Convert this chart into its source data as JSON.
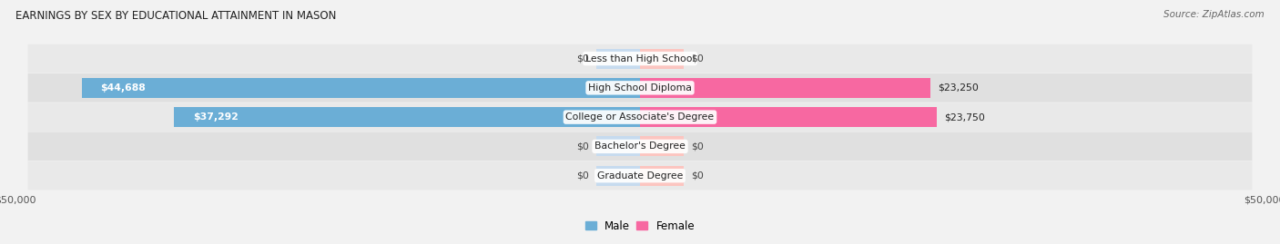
{
  "title": "EARNINGS BY SEX BY EDUCATIONAL ATTAINMENT IN MASON",
  "source": "Source: ZipAtlas.com",
  "categories": [
    "Less than High School",
    "High School Diploma",
    "College or Associate's Degree",
    "Bachelor's Degree",
    "Graduate Degree"
  ],
  "male_values": [
    0,
    44688,
    37292,
    0,
    0
  ],
  "female_values": [
    0,
    23250,
    23750,
    0,
    0
  ],
  "male_labels": [
    "$0",
    "$44,688",
    "$37,292",
    "$0",
    "$0"
  ],
  "female_labels": [
    "$0",
    "$23,250",
    "$23,750",
    "$0",
    "$0"
  ],
  "male_color": "#6baed6",
  "female_color": "#f768a1",
  "male_color_light": "#c6dbef",
  "female_color_light": "#fcc5c0",
  "max_value": 50000,
  "stub_value": 3500,
  "background_color": "#f2f2f2",
  "row_bg_color": "#e8e8e8",
  "row_bg_even": "#efefef",
  "row_bg_odd": "#e4e4e4"
}
